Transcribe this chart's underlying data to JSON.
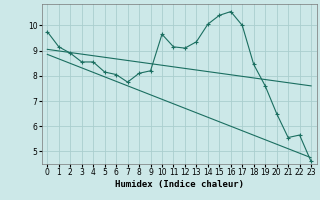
{
  "xlabel": "Humidex (Indice chaleur)",
  "ylabel": "",
  "bg_color": "#cce8e8",
  "grid_color": "#aacece",
  "line_color": "#1a6e60",
  "xlim": [
    -0.5,
    23.5
  ],
  "ylim": [
    4.5,
    10.85
  ],
  "xticks": [
    0,
    1,
    2,
    3,
    4,
    5,
    6,
    7,
    8,
    9,
    10,
    11,
    12,
    13,
    14,
    15,
    16,
    17,
    18,
    19,
    20,
    21,
    22,
    23
  ],
  "yticks": [
    5,
    6,
    7,
    8,
    9,
    10
  ],
  "line1_x": [
    0,
    1,
    2,
    3,
    4,
    5,
    6,
    7,
    8,
    9,
    10,
    11,
    12,
    13,
    14,
    15,
    16,
    17,
    18,
    19,
    20,
    21,
    22,
    23
  ],
  "line1_y": [
    9.75,
    9.15,
    8.9,
    8.55,
    8.55,
    8.15,
    8.05,
    7.75,
    8.1,
    8.2,
    9.65,
    9.15,
    9.1,
    9.35,
    10.05,
    10.4,
    10.55,
    10.0,
    8.45,
    7.6,
    6.5,
    5.55,
    5.65,
    4.6
  ],
  "line2_x": [
    0,
    23
  ],
  "line2_y": [
    9.05,
    7.6
  ],
  "line3_x": [
    0,
    23
  ],
  "line3_y": [
    8.85,
    4.75
  ]
}
